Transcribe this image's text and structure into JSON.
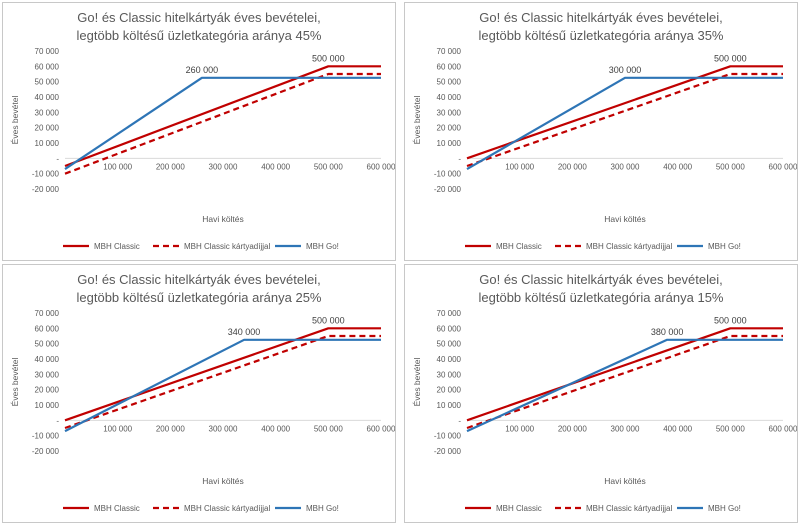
{
  "chart_data": [
    {
      "type": "line",
      "title": [
        "Go! és Classic hitelkártyák éves bevételei,",
        "legtöbb költésű üzletkategória aránya 45%"
      ],
      "xlabel": "Havi költés",
      "ylabel": "Éves bevétel",
      "xlim": [
        0,
        600000
      ],
      "ylim": [
        -20000,
        70000
      ],
      "x_ticks": [
        "100 000",
        "200 000",
        "300 000",
        "400 000",
        "500 000",
        "600 000"
      ],
      "y_ticks": [
        "70 000",
        "60 000",
        "50 000",
        "40 000",
        "30 000",
        "20 000",
        "10 000",
        "-",
        "-10 000",
        "-20 000"
      ],
      "series": [
        {
          "name": "MBH Classic",
          "color": "#c00000",
          "dash": "solid",
          "x": [
            0,
            500000,
            600000
          ],
          "y": [
            -5000,
            60000,
            60000
          ]
        },
        {
          "name": "MBH Classic kártyadíjjal",
          "color": "#c00000",
          "dash": "dashed",
          "x": [
            0,
            500000,
            600000
          ],
          "y": [
            -10000,
            55000,
            55000
          ]
        },
        {
          "name": "MBH Go!",
          "color": "#2e75b6",
          "dash": "solid",
          "x": [
            0,
            260000,
            600000
          ],
          "y": [
            -7000,
            52500,
            52500
          ]
        }
      ],
      "annotations": [
        {
          "text": "260 000",
          "x": 260000,
          "y": 52500
        },
        {
          "text": "500 000",
          "x": 500000,
          "y": 60000
        }
      ],
      "legend_position": "bottom"
    },
    {
      "type": "line",
      "title": [
        "Go! és Classic hitelkártyák éves bevételei,",
        "legtöbb költésű üzletkategória aránya 35%"
      ],
      "xlabel": "Havi költés",
      "ylabel": "Éves bevétel",
      "xlim": [
        0,
        600000
      ],
      "ylim": [
        -20000,
        70000
      ],
      "x_ticks": [
        "100 000",
        "200 000",
        "300 000",
        "400 000",
        "500 000",
        "600 000"
      ],
      "y_ticks": [
        "70 000",
        "60 000",
        "50 000",
        "40 000",
        "30 000",
        "20 000",
        "10 000",
        "-",
        "-10 000",
        "-20 000"
      ],
      "series": [
        {
          "name": "MBH Classic",
          "color": "#c00000",
          "dash": "solid",
          "x": [
            0,
            500000,
            600000
          ],
          "y": [
            0,
            60000,
            60000
          ]
        },
        {
          "name": "MBH Classic kártyadíjjal",
          "color": "#c00000",
          "dash": "dashed",
          "x": [
            0,
            500000,
            600000
          ],
          "y": [
            -5000,
            55000,
            55000
          ]
        },
        {
          "name": "MBH Go!",
          "color": "#2e75b6",
          "dash": "solid",
          "x": [
            0,
            300000,
            600000
          ],
          "y": [
            -7000,
            52500,
            52500
          ]
        }
      ],
      "annotations": [
        {
          "text": "300 000",
          "x": 300000,
          "y": 52500
        },
        {
          "text": "500 000",
          "x": 500000,
          "y": 60000
        }
      ],
      "legend_position": "bottom"
    },
    {
      "type": "line",
      "title": [
        "Go! és Classic hitelkártyák éves bevételei,",
        "legtöbb költésű üzletkategória aránya 25%"
      ],
      "xlabel": "Havi költés",
      "ylabel": "Éves bevétel",
      "xlim": [
        0,
        600000
      ],
      "ylim": [
        -20000,
        70000
      ],
      "x_ticks": [
        "100 000",
        "200 000",
        "300 000",
        "400 000",
        "500 000",
        "600 000"
      ],
      "y_ticks": [
        "70 000",
        "60 000",
        "50 000",
        "40 000",
        "30 000",
        "20 000",
        "10 000",
        "-",
        "-10 000",
        "-20 000"
      ],
      "series": [
        {
          "name": "MBH Classic",
          "color": "#c00000",
          "dash": "solid",
          "x": [
            0,
            500000,
            600000
          ],
          "y": [
            0,
            60000,
            60000
          ]
        },
        {
          "name": "MBH Classic kártyadíjjal",
          "color": "#c00000",
          "dash": "dashed",
          "x": [
            0,
            500000,
            600000
          ],
          "y": [
            -5000,
            55000,
            55000
          ]
        },
        {
          "name": "MBH Go!",
          "color": "#2e75b6",
          "dash": "solid",
          "x": [
            0,
            340000,
            600000
          ],
          "y": [
            -7000,
            52500,
            52500
          ]
        }
      ],
      "annotations": [
        {
          "text": "340 000",
          "x": 340000,
          "y": 52500
        },
        {
          "text": "500 000",
          "x": 500000,
          "y": 60000
        }
      ],
      "legend_position": "bottom"
    },
    {
      "type": "line",
      "title": [
        "Go! és Classic hitelkártyák éves bevételei,",
        "legtöbb költésű üzletkategória aránya 15%"
      ],
      "xlabel": "Havi költés",
      "ylabel": "Éves bevétel",
      "xlim": [
        0,
        600000
      ],
      "ylim": [
        -20000,
        70000
      ],
      "x_ticks": [
        "100 000",
        "200 000",
        "300 000",
        "400 000",
        "500 000",
        "600 000"
      ],
      "y_ticks": [
        "70 000",
        "60 000",
        "50 000",
        "40 000",
        "30 000",
        "20 000",
        "10 000",
        "-",
        "-10 000",
        "-20 000"
      ],
      "series": [
        {
          "name": "MBH Classic",
          "color": "#c00000",
          "dash": "solid",
          "x": [
            0,
            500000,
            600000
          ],
          "y": [
            0,
            60000,
            60000
          ]
        },
        {
          "name": "MBH Classic kártyadíjjal",
          "color": "#c00000",
          "dash": "dashed",
          "x": [
            0,
            500000,
            600000
          ],
          "y": [
            -5000,
            55000,
            55000
          ]
        },
        {
          "name": "MBH Go!",
          "color": "#2e75b6",
          "dash": "solid",
          "x": [
            0,
            380000,
            600000
          ],
          "y": [
            -7000,
            52500,
            52500
          ]
        }
      ],
      "annotations": [
        {
          "text": "380 000",
          "x": 380000,
          "y": 52500
        },
        {
          "text": "500 000",
          "x": 500000,
          "y": 60000
        }
      ],
      "legend_position": "bottom"
    }
  ]
}
